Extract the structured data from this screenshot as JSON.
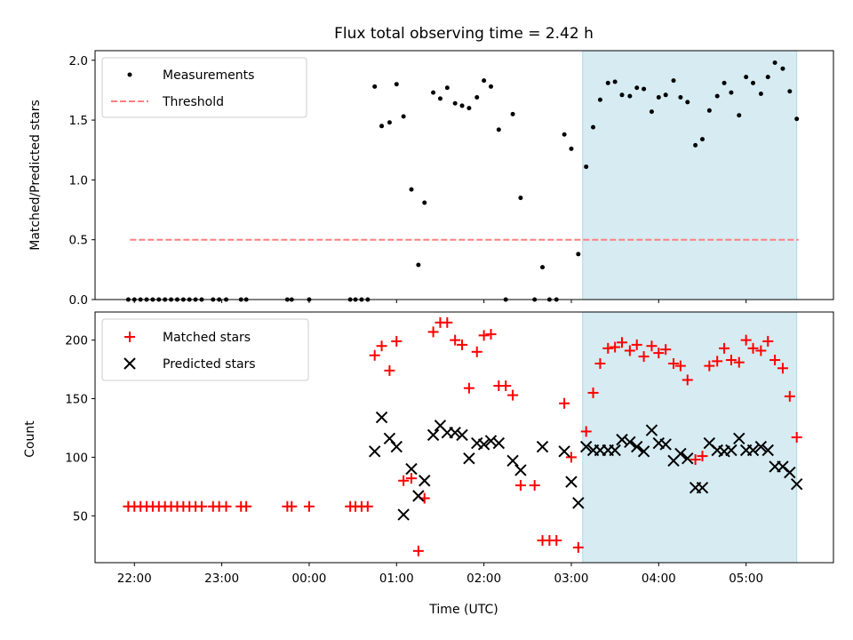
{
  "chart_data": {
    "title": "Flux total observing time = 2.42 h",
    "xlabel": "Time (UTC)",
    "x_unit": "hours since 00:00 UTC (negative = previous day)",
    "xlim": [
      -2.45,
      6.0
    ],
    "x_tick_values": [
      -2,
      -1,
      0,
      1,
      2,
      3,
      4,
      5
    ],
    "x_tick_labels": [
      "22:00",
      "23:00",
      "00:00",
      "01:00",
      "02:00",
      "03:00",
      "04:00",
      "05:00"
    ],
    "shaded_region": {
      "start": 3.13,
      "end": 5.58,
      "color": "#add8e6"
    },
    "panels": [
      {
        "type": "scatter",
        "ylabel": "Matched/Predicted stars",
        "ylim": [
          0,
          2.08
        ],
        "y_ticks": [
          0.0,
          0.5,
          1.0,
          1.5,
          2.0
        ],
        "y_tick_labels": [
          "0.0",
          "0.5",
          "1.0",
          "1.5",
          "2.0"
        ],
        "legend": [
          "Measurements",
          "Threshold"
        ],
        "threshold": {
          "name": "Threshold",
          "value": 0.5,
          "x_start": -2.05,
          "x_end": 5.6,
          "color": "#ff7f7f"
        },
        "series": [
          {
            "name": "Measurements",
            "marker": "dot",
            "color": "#000000",
            "x": [
              -2.07,
              -2.0,
              -1.93,
              -1.86,
              -1.79,
              -1.72,
              -1.65,
              -1.58,
              -1.51,
              -1.44,
              -1.37,
              -1.3,
              -1.23,
              -1.1,
              -1.03,
              -0.95,
              -0.78,
              -0.72,
              -0.25,
              -0.2,
              0.0,
              0.47,
              0.53,
              0.6,
              0.67,
              0.75,
              0.83,
              0.92,
              1.0,
              1.08,
              1.17,
              1.25,
              1.32,
              1.42,
              1.5,
              1.58,
              1.67,
              1.75,
              1.83,
              1.92,
              2.0,
              2.08,
              2.17,
              2.25,
              2.33,
              2.42,
              2.58,
              2.67,
              2.75,
              2.83,
              2.92,
              3.0,
              3.08,
              3.17,
              3.25,
              3.33,
              3.42,
              3.5,
              3.58,
              3.67,
              3.75,
              3.83,
              3.92,
              4.0,
              4.08,
              4.17,
              4.25,
              4.33,
              4.42,
              4.5,
              4.58,
              4.67,
              4.75,
              4.83,
              4.92,
              5.0,
              5.08,
              5.17,
              5.25,
              5.33,
              5.42,
              5.5,
              5.58
            ],
            "y": [
              0,
              0,
              0,
              0,
              0,
              0,
              0,
              0,
              0,
              0,
              0,
              0,
              0,
              0,
              0,
              0,
              0,
              0,
              0,
              0,
              0,
              0,
              0,
              0,
              0,
              1.78,
              1.45,
              1.48,
              1.8,
              1.53,
              0.92,
              0.29,
              0.81,
              1.73,
              1.68,
              1.77,
              1.64,
              1.62,
              1.6,
              1.69,
              1.83,
              1.78,
              1.42,
              0,
              1.55,
              0.85,
              0,
              0.27,
              0,
              0,
              1.38,
              1.26,
              0.38,
              1.11,
              1.44,
              1.67,
              1.81,
              1.82,
              1.71,
              1.7,
              1.77,
              1.76,
              1.57,
              1.69,
              1.71,
              1.83,
              1.69,
              1.65,
              1.29,
              1.34,
              1.58,
              1.7,
              1.81,
              1.73,
              1.54,
              1.86,
              1.81,
              1.72,
              1.86,
              1.98,
              1.93,
              1.74,
              1.51
            ]
          }
        ]
      },
      {
        "type": "scatter",
        "ylabel": "Count",
        "ylim": [
          10,
          224
        ],
        "y_ticks": [
          50,
          100,
          150,
          200
        ],
        "y_tick_labels": [
          "50",
          "100",
          "150",
          "200"
        ],
        "legend": [
          "Matched stars",
          "Predicted stars"
        ],
        "series": [
          {
            "name": "Matched stars",
            "marker": "plus",
            "color": "#ff0000",
            "x": [
              -2.07,
              -2.0,
              -1.93,
              -1.86,
              -1.79,
              -1.72,
              -1.65,
              -1.58,
              -1.51,
              -1.44,
              -1.37,
              -1.3,
              -1.23,
              -1.1,
              -1.03,
              -0.95,
              -0.78,
              -0.72,
              -0.25,
              -0.2,
              0.0,
              0.47,
              0.53,
              0.6,
              0.67,
              0.75,
              0.83,
              0.92,
              1.0,
              1.08,
              1.17,
              1.25,
              1.32,
              1.42,
              1.5,
              1.58,
              1.67,
              1.75,
              1.83,
              1.92,
              2.0,
              2.08,
              2.17,
              2.25,
              2.33,
              2.42,
              2.58,
              2.67,
              2.75,
              2.83,
              2.92,
              3.0,
              3.08,
              3.17,
              3.25,
              3.33,
              3.42,
              3.5,
              3.58,
              3.67,
              3.75,
              3.83,
              3.92,
              4.0,
              4.08,
              4.17,
              4.25,
              4.33,
              4.42,
              4.5,
              4.58,
              4.67,
              4.75,
              4.83,
              4.92,
              5.0,
              5.08,
              5.17,
              5.25,
              5.33,
              5.42,
              5.5,
              5.58
            ],
            "y": [
              58,
              58,
              58,
              58,
              58,
              58,
              58,
              58,
              58,
              58,
              58,
              58,
              58,
              58,
              58,
              58,
              58,
              58,
              58,
              58,
              58,
              58,
              58,
              58,
              58,
              187,
              195,
              174,
              199,
              80,
              82,
              20,
              65,
              207,
              215,
              215,
              200,
              196,
              159,
              190,
              204,
              205,
              161,
              161,
              153,
              76,
              76,
              29,
              29,
              29,
              146,
              100,
              23,
              122,
              155,
              180,
              193,
              194,
              198,
              191,
              196,
              186,
              195,
              189,
              192,
              180,
              178,
              166,
              98,
              101,
              178,
              182,
              193,
              183,
              181,
              200,
              193,
              191,
              199,
              183,
              176,
              152,
              117
            ]
          },
          {
            "name": "Predicted stars",
            "marker": "x",
            "color": "#000000",
            "x": [
              0.75,
              0.83,
              0.92,
              1.0,
              1.08,
              1.17,
              1.25,
              1.32,
              1.42,
              1.5,
              1.58,
              1.67,
              1.75,
              1.83,
              1.92,
              2.0,
              2.08,
              2.17,
              2.33,
              2.42,
              2.67,
              2.92,
              3.0,
              3.08,
              3.17,
              3.25,
              3.33,
              3.42,
              3.5,
              3.58,
              3.67,
              3.75,
              3.83,
              3.92,
              4.0,
              4.08,
              4.17,
              4.25,
              4.33,
              4.42,
              4.5,
              4.58,
              4.67,
              4.75,
              4.83,
              4.92,
              5.0,
              5.08,
              5.17,
              5.25,
              5.33,
              5.42,
              5.5,
              5.58
            ],
            "y": [
              105,
              134,
              116,
              109,
              51,
              90,
              67,
              80,
              119,
              127,
              121,
              121,
              119,
              99,
              112,
              111,
              114,
              112,
              97,
              89,
              109,
              105,
              79,
              61,
              109,
              106,
              106,
              106,
              106,
              115,
              113,
              109,
              105,
              123,
              112,
              111,
              97,
              103,
              99,
              74,
              74,
              112,
              106,
              105,
              106,
              116,
              106,
              106,
              109,
              106,
              92,
              92,
              87,
              77
            ]
          }
        ]
      }
    ]
  }
}
